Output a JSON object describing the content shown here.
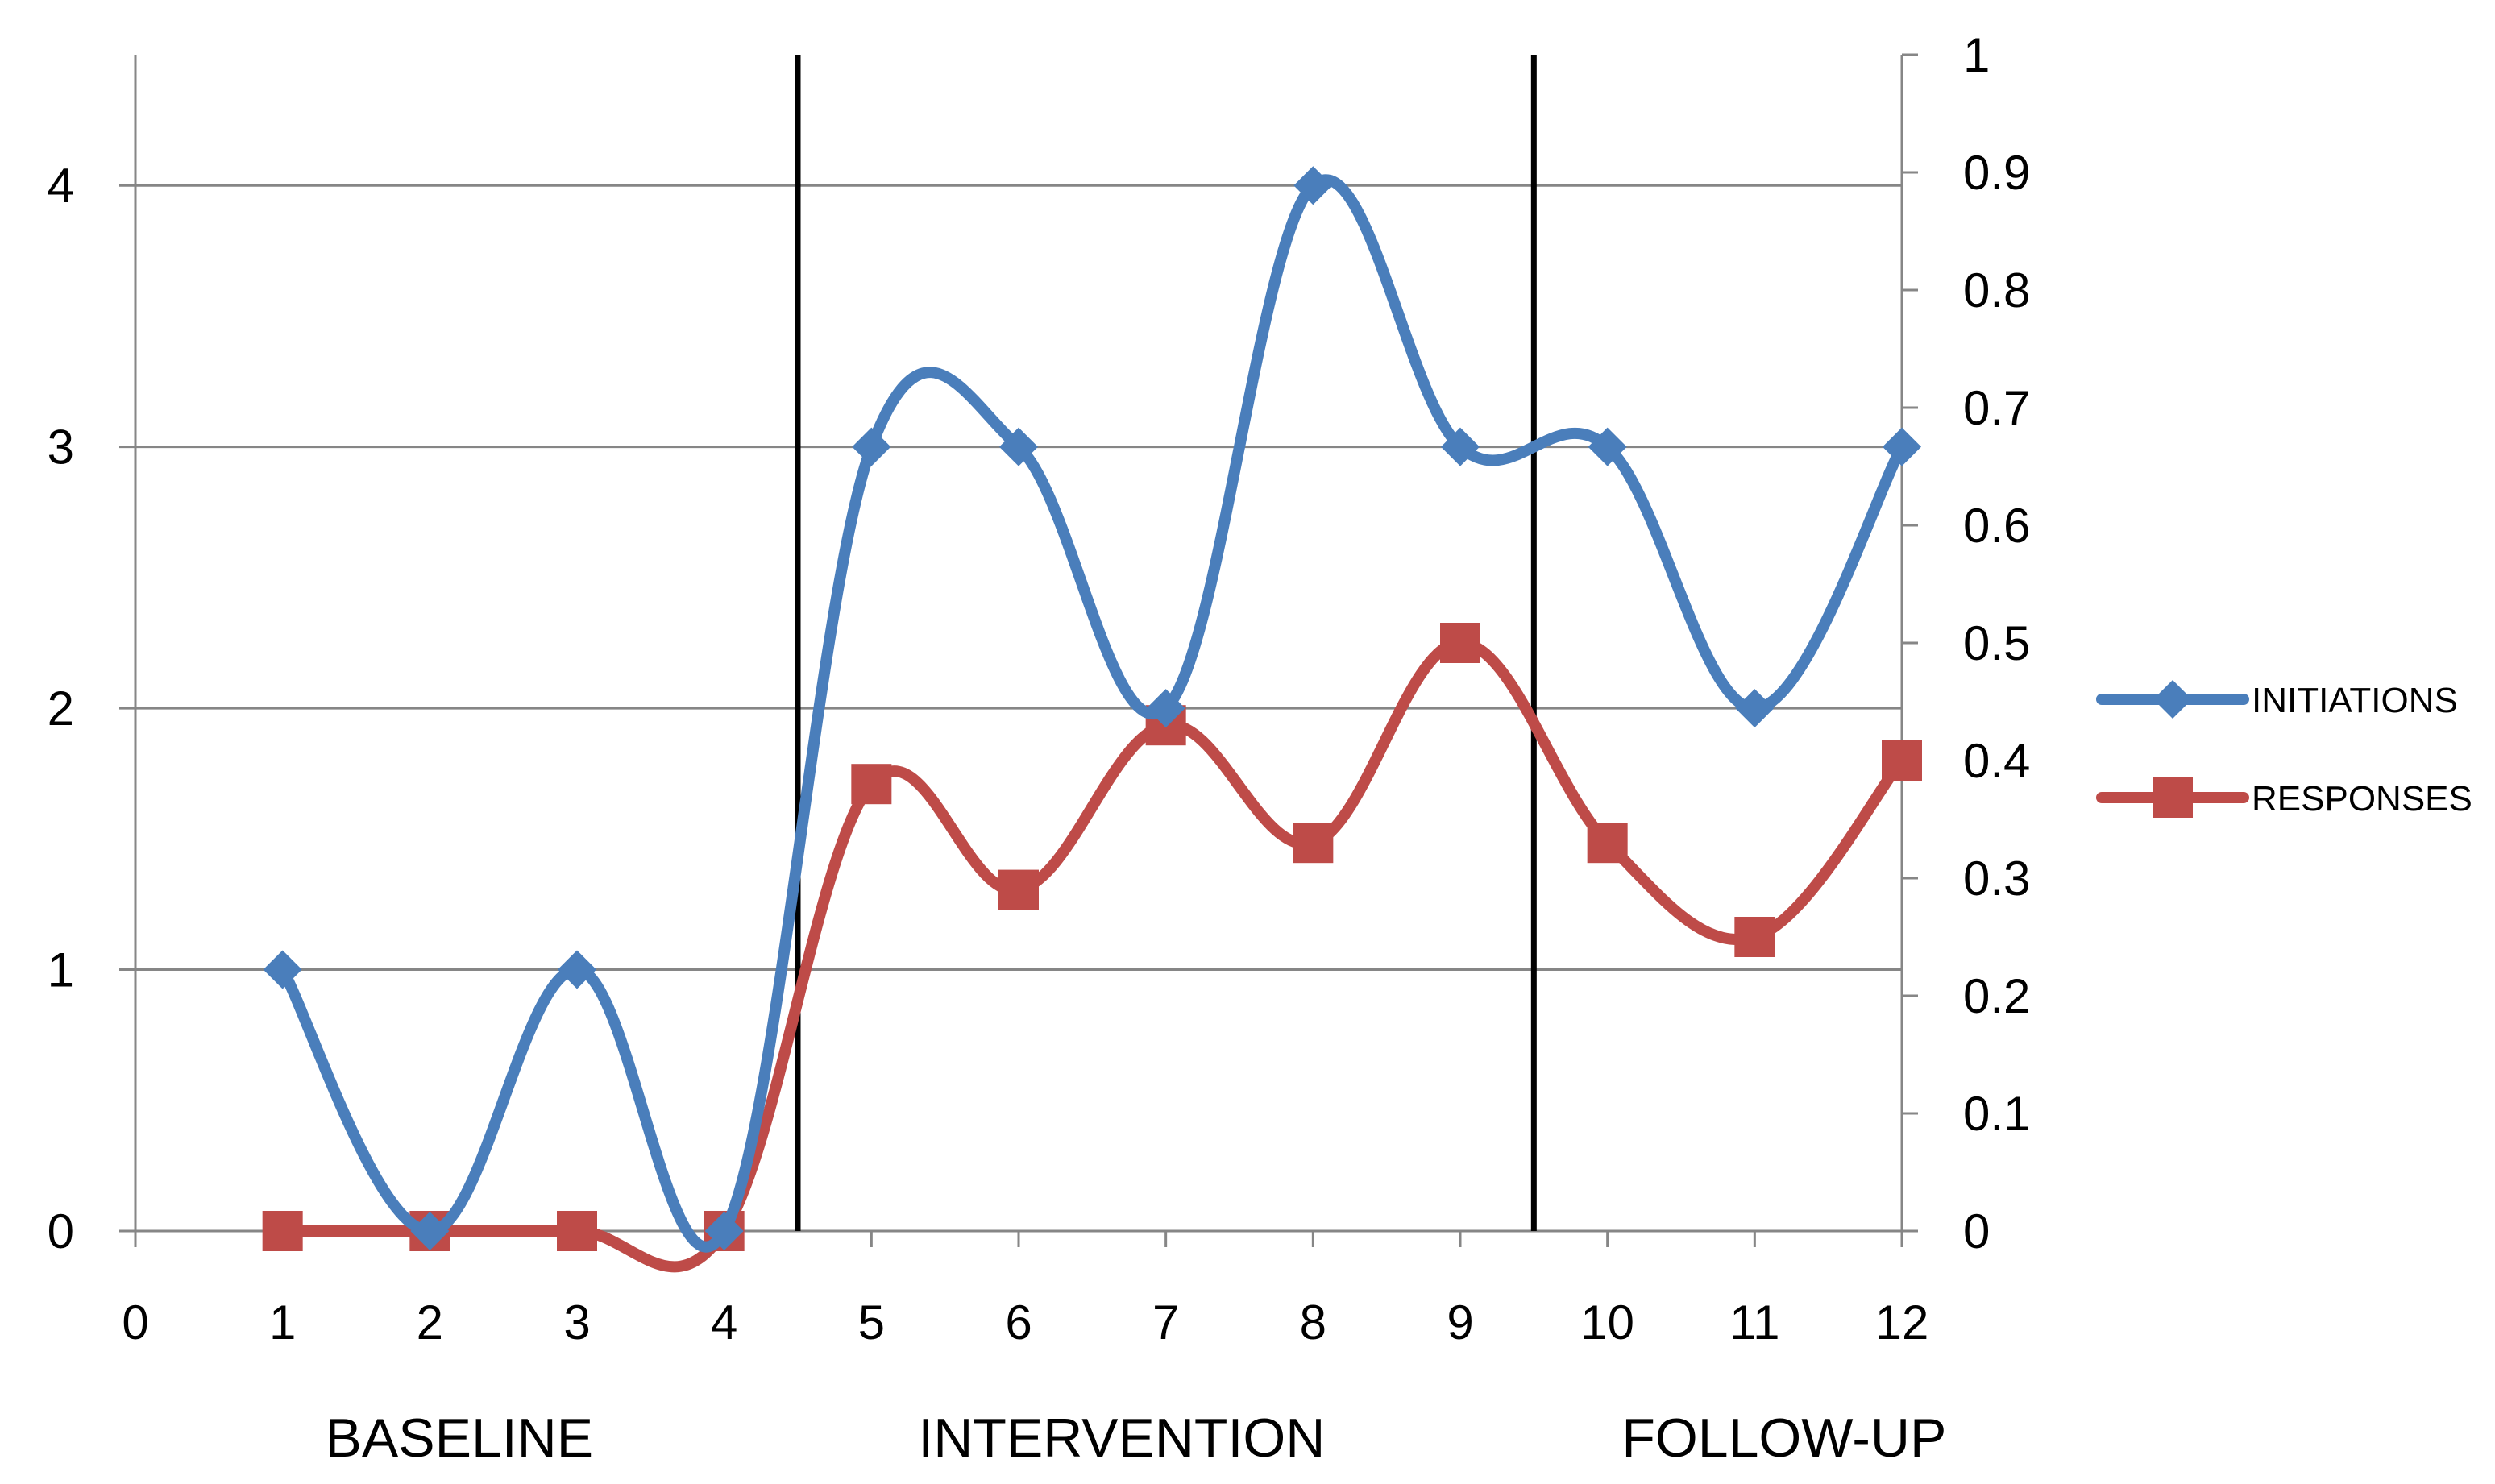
{
  "chart_data": {
    "type": "line",
    "x": [
      1,
      2,
      3,
      4,
      5,
      6,
      7,
      8,
      9,
      10,
      11,
      12
    ],
    "xlim": [
      0,
      12
    ],
    "x_ticks": [
      "0",
      "1",
      "2",
      "3",
      "4",
      "5",
      "6",
      "7",
      "8",
      "9",
      "10",
      "11",
      "12"
    ],
    "y_left_lim": [
      0,
      4.5
    ],
    "y_left_ticks": [
      "0",
      "1",
      "2",
      "3",
      "4"
    ],
    "y_right_lim": [
      0,
      1
    ],
    "y_right_ticks": [
      "0",
      "0.1",
      "0.2",
      "0.3",
      "0.4",
      "0.5",
      "0.6",
      "0.7",
      "0.8",
      "0.9",
      "1"
    ],
    "grid": "horizontal",
    "smoothed": true,
    "series": [
      {
        "name": "INITIATIONS",
        "axis": "left",
        "color": "#4a7ebb",
        "marker": "diamond",
        "values": [
          1,
          0,
          1,
          0,
          3,
          3,
          2,
          4,
          3,
          3,
          2,
          3
        ]
      },
      {
        "name": "RESPONSES",
        "axis": "right",
        "color": "#be4b48",
        "marker": "square",
        "values": [
          0,
          0,
          0,
          0,
          0.38,
          0.29,
          0.43,
          0.33,
          0.5,
          0.33,
          0.25,
          0.4
        ]
      }
    ],
    "phase_lines_x": [
      4.5,
      9.5
    ],
    "phase_labels": [
      "BASELINE",
      "INTERVENTION",
      "FOLLOW-UP"
    ],
    "legend_position": "right"
  }
}
